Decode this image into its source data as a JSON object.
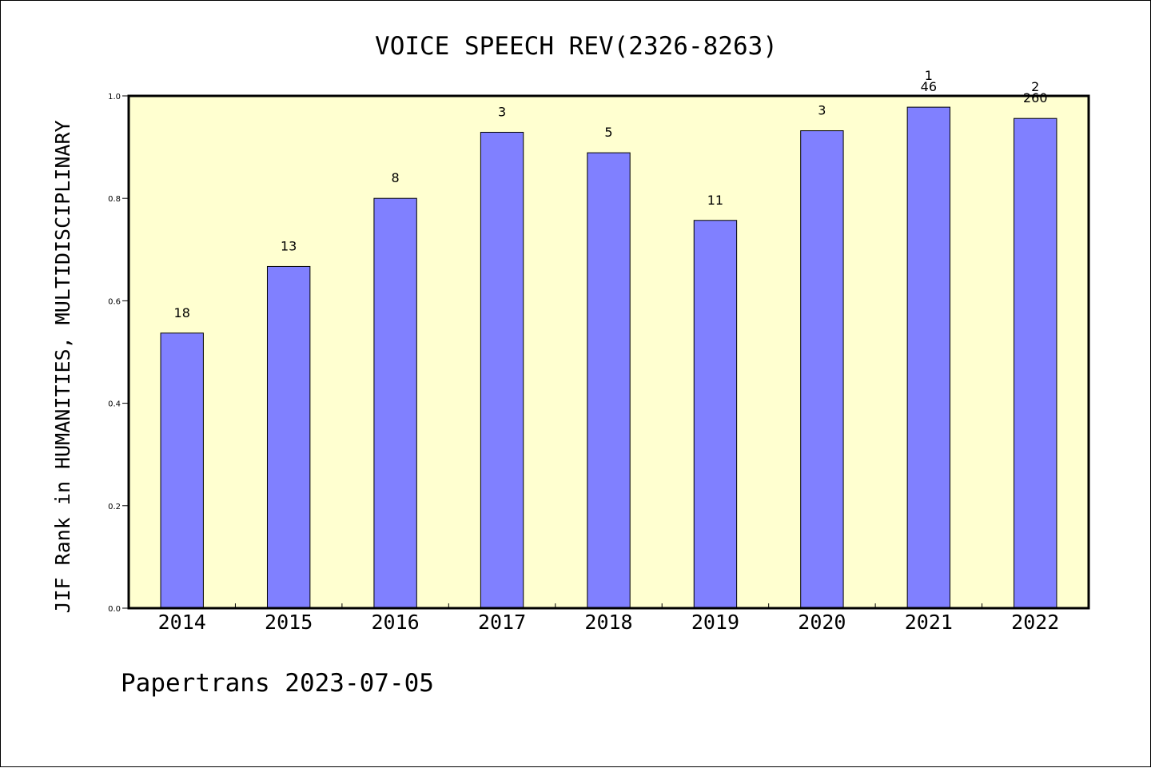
{
  "chart_data": {
    "type": "bar",
    "title": "VOICE SPEECH REV(2326-8263)",
    "ylabel": "JIF Rank in HUMANITIES, MULTIDISCIPLINARY",
    "xlabel": "",
    "categories": [
      "2014",
      "2015",
      "2016",
      "2017",
      "2018",
      "2019",
      "2020",
      "2021",
      "2022"
    ],
    "values": [
      0.537,
      0.667,
      0.8,
      0.929,
      0.889,
      0.757,
      0.932,
      0.978,
      0.956
    ],
    "bar_labels": [
      [
        "18"
      ],
      [
        "13"
      ],
      [
        "8"
      ],
      [
        "3"
      ],
      [
        "5"
      ],
      [
        "11"
      ],
      [
        "3"
      ],
      [
        "1",
        "46"
      ],
      [
        "2",
        "260"
      ]
    ],
    "ylim": [
      0,
      1.0
    ],
    "yticks": [
      "0.0",
      "0.2",
      "0.4",
      "0.6",
      "0.8",
      "1.0"
    ],
    "grid": false,
    "colors": {
      "bar_fill": "#8080ff",
      "bar_stroke": "#000000",
      "plot_background": "#ffffd0"
    }
  },
  "footer": {
    "watermark": "Papertrans 2023-07-05"
  }
}
